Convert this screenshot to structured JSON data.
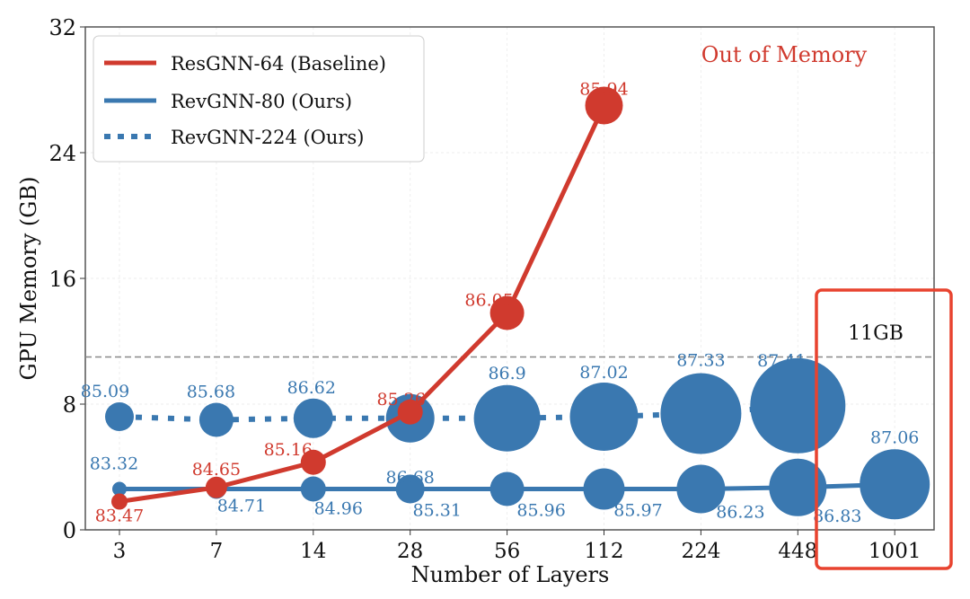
{
  "chart_data": {
    "type": "scatter",
    "xlabel": "Number of Layers",
    "ylabel": "GPU Memory (GB)",
    "categories": [
      "3",
      "7",
      "14",
      "28",
      "56",
      "112",
      "224",
      "448",
      "1001"
    ],
    "yticks": [
      "0",
      "8",
      "16",
      "24",
      "32"
    ],
    "ylim": [
      0,
      32
    ],
    "grid": true,
    "legend_position": "top-left",
    "threshold": {
      "value": 11,
      "label": "11GB",
      "style": "dashed",
      "color": "#888888"
    },
    "annotation": {
      "text": "Out of Memory",
      "color": "#d03a2e"
    },
    "highlight_box": {
      "category": "1001",
      "color": "#e8432f"
    },
    "series": [
      {
        "name": "ResGNN-64 (Baseline)",
        "color": "#d03a2e",
        "style": "solid",
        "values": [
          1.8,
          2.7,
          4.3,
          7.5,
          13.8,
          27.0,
          null,
          null,
          null
        ],
        "labels": [
          "83.47",
          "84.65",
          "85.16",
          "85.26",
          "86.05",
          "85.94",
          null,
          null,
          null
        ]
      },
      {
        "name": "RevGNN-80 (Ours)",
        "color": "#3a78b0",
        "style": "solid",
        "values": [
          2.6,
          2.6,
          2.6,
          2.6,
          2.6,
          2.6,
          2.6,
          2.7,
          2.9
        ],
        "labels": [
          "83.32",
          "84.71",
          "84.96",
          "85.31",
          "85.96",
          "85.97",
          "86.23",
          "86.83",
          "87.06"
        ]
      },
      {
        "name": "RevGNN-224 (Ours)",
        "color": "#3a78b0",
        "style": "dotted",
        "values": [
          7.2,
          7.0,
          7.1,
          7.1,
          7.1,
          7.2,
          7.4,
          7.9,
          null
        ],
        "labels": [
          "85.09",
          "85.68",
          "86.62",
          "86.68",
          "86.9",
          "87.02",
          "87.33",
          "87.41",
          null
        ]
      }
    ]
  }
}
